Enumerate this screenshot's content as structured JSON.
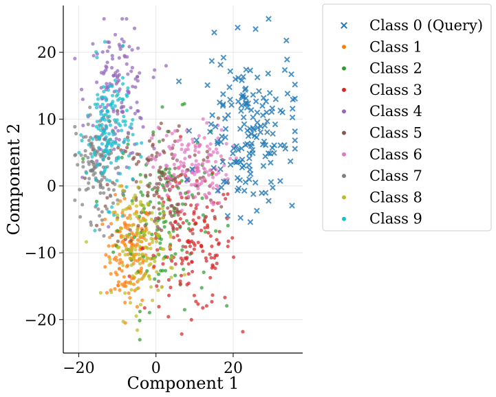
{
  "chart_data": {
    "type": "scatter",
    "title": "",
    "xlabel": "Component 1",
    "ylabel": "Component 2",
    "xlim": [
      -24,
      38
    ],
    "ylim": [
      -25,
      27
    ],
    "xticks": [
      -20,
      0,
      20
    ],
    "yticks": [
      -20,
      -10,
      0,
      10,
      20
    ],
    "xtick_labels": [
      "−20",
      "0",
      "20"
    ],
    "ytick_labels": [
      "−20",
      "−10",
      "0",
      "10",
      "20"
    ],
    "grid": true,
    "legend_position": "outside-right",
    "series": [
      {
        "name": "Class 0 (Query)",
        "marker": "x",
        "color": "#1f77b4",
        "center": [
          24,
          8
        ],
        "spread": [
          6,
          6
        ],
        "count": 170
      },
      {
        "name": "Class 1",
        "marker": "dot",
        "color": "#ff7f0e",
        "center": [
          -7,
          -10
        ],
        "spread": [
          3,
          4
        ],
        "count": 150
      },
      {
        "name": "Class 2",
        "marker": "dot",
        "color": "#2ca02c",
        "center": [
          2,
          -4
        ],
        "spread": [
          6,
          7
        ],
        "count": 130
      },
      {
        "name": "Class 3",
        "marker": "dot",
        "color": "#d62728",
        "center": [
          9,
          -9
        ],
        "spread": [
          6,
          5
        ],
        "count": 150
      },
      {
        "name": "Class 4",
        "marker": "dot",
        "color": "#9467bd",
        "center": [
          -10,
          14
        ],
        "spread": [
          4,
          5
        ],
        "count": 140
      },
      {
        "name": "Class 5",
        "marker": "dot",
        "color": "#8c564b",
        "center": [
          2,
          0
        ],
        "spread": [
          7,
          5
        ],
        "count": 150
      },
      {
        "name": "Class 6",
        "marker": "dot",
        "color": "#e377c2",
        "center": [
          9,
          3
        ],
        "spread": [
          5,
          3
        ],
        "count": 150
      },
      {
        "name": "Class 7",
        "marker": "dot",
        "color": "#7f7f7f",
        "center": [
          -15,
          3
        ],
        "spread": [
          3,
          4
        ],
        "count": 130
      },
      {
        "name": "Class 8",
        "marker": "dot",
        "color": "#bcbd22",
        "center": [
          -3,
          -9
        ],
        "spread": [
          4,
          4
        ],
        "count": 130
      },
      {
        "name": "Class 9",
        "marker": "dot",
        "color": "#17becf",
        "center": [
          -12,
          8
        ],
        "spread": [
          3,
          5
        ],
        "count": 150
      }
    ]
  }
}
